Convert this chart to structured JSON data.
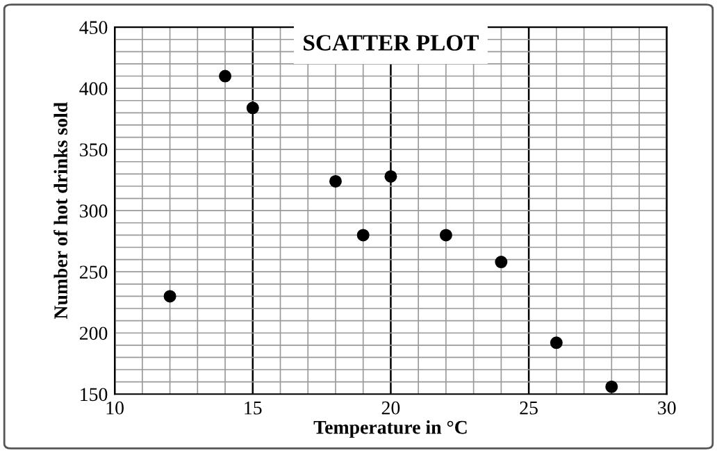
{
  "chart_data": {
    "type": "scatter",
    "title": "SCATTER PLOT",
    "xlabel": "Temperature in °C",
    "ylabel": "Number of hot drinks sold",
    "x": [
      12,
      14,
      15,
      18,
      19,
      20,
      22,
      24,
      26,
      28
    ],
    "values": [
      230,
      410,
      384,
      324,
      280,
      328,
      280,
      258,
      192,
      156
    ],
    "color": "#000000",
    "marker": "circle",
    "xlim": [
      10,
      30
    ],
    "xticks": [
      10,
      15,
      20,
      25,
      30
    ],
    "ylim": [
      150,
      450
    ],
    "yticks": [
      150,
      200,
      250,
      300,
      350,
      400,
      450
    ],
    "grid": true
  }
}
